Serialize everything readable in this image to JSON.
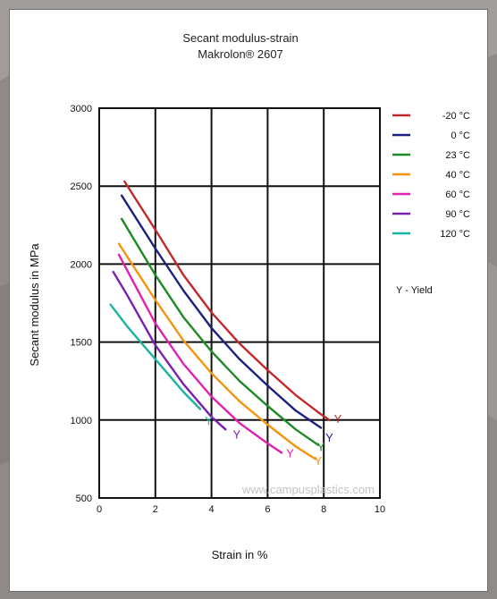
{
  "chart_data": {
    "type": "line",
    "title": "Secant modulus-strain",
    "subtitle": "Makrolon® 2607",
    "xlabel": "Strain in %",
    "ylabel": "Secant modulus in MPa",
    "xlim": [
      0,
      10
    ],
    "ylim": [
      500,
      3000
    ],
    "xticks": [
      "0",
      "2",
      "4",
      "6",
      "8",
      "10"
    ],
    "yticks": [
      "500",
      "1000",
      "1500",
      "2000",
      "2500",
      "3000"
    ],
    "grid": true,
    "legend_position": "right",
    "yield_marker": "Y",
    "yield_note": "Y - Yield",
    "watermark": "www.campusplastics.com",
    "series": [
      {
        "name": "-20 °C",
        "color": "#c0282a",
        "x": [
          0.9,
          2,
          3,
          4,
          5,
          6,
          7,
          7.8,
          8.2
        ],
        "y": [
          2530,
          2220,
          1930,
          1690,
          1490,
          1320,
          1160,
          1050,
          1000
        ],
        "yield": [
          8.5,
          1010
        ]
      },
      {
        "name": "0 °C",
        "color": "#1c2080",
        "x": [
          0.8,
          2,
          3,
          4,
          5,
          6,
          7,
          7.9
        ],
        "y": [
          2440,
          2100,
          1830,
          1590,
          1390,
          1220,
          1060,
          950
        ],
        "yield": [
          8.2,
          890
        ]
      },
      {
        "name": "23 °C",
        "color": "#1e8a24",
        "x": [
          0.8,
          2,
          3,
          4,
          5,
          6,
          7,
          7.8
        ],
        "y": [
          2290,
          1930,
          1660,
          1440,
          1250,
          1090,
          940,
          840
        ],
        "yield": [
          7.9,
          830
        ]
      },
      {
        "name": "40 °C",
        "color": "#f5930e",
        "x": [
          0.7,
          2,
          3,
          4,
          5,
          6,
          7,
          7.7
        ],
        "y": [
          2130,
          1770,
          1510,
          1300,
          1120,
          970,
          830,
          750
        ],
        "yield": [
          7.8,
          740
        ]
      },
      {
        "name": "60 °C",
        "color": "#e020b0",
        "x": [
          0.7,
          2,
          3,
          4,
          5,
          6,
          6.5
        ],
        "y": [
          2060,
          1620,
          1360,
          1150,
          980,
          850,
          790
        ],
        "yield": [
          6.8,
          790
        ]
      },
      {
        "name": "90 °C",
        "color": "#7a1fb0",
        "x": [
          0.5,
          1,
          2,
          3,
          4,
          4.5
        ],
        "y": [
          1950,
          1800,
          1480,
          1230,
          1020,
          940
        ],
        "yield": [
          4.9,
          910
        ]
      },
      {
        "name": "120 °C",
        "color": "#1ab3a0",
        "x": [
          0.4,
          1,
          2,
          3,
          3.6
        ],
        "y": [
          1740,
          1600,
          1390,
          1180,
          1070
        ],
        "yield": [
          3.9,
          1000
        ]
      }
    ]
  }
}
